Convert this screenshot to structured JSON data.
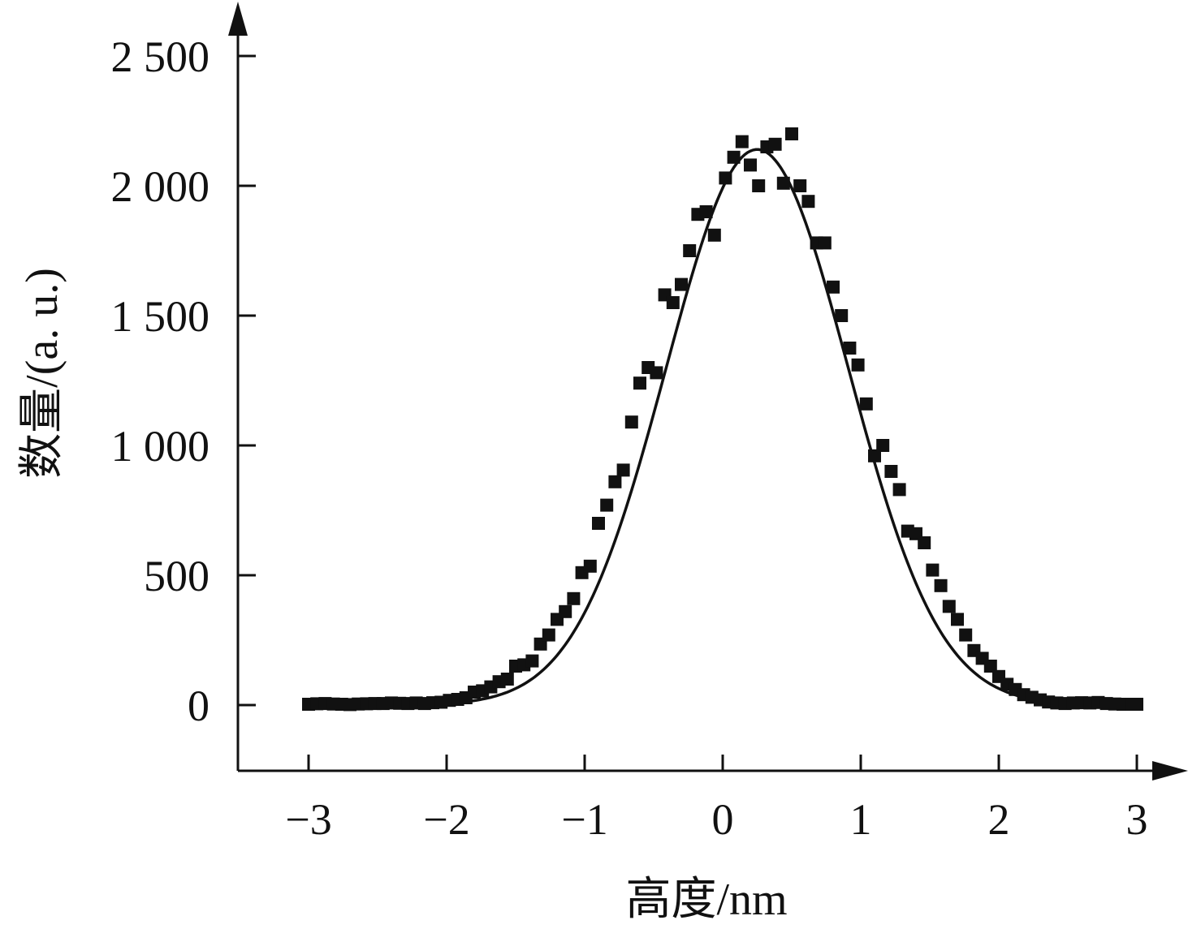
{
  "chart_data": {
    "type": "scatter",
    "xlabel": "高度/nm",
    "ylabel": "数量/(a. u.)",
    "xlim": [
      -3.5,
      3.35
    ],
    "ylim": [
      -250,
      2700
    ],
    "x_ticks": [
      -3,
      -2,
      -1,
      0,
      1,
      2,
      3
    ],
    "x_tick_labels": [
      "−3",
      "−2",
      "−1",
      "0",
      "1",
      "2",
      "3"
    ],
    "y_ticks": [
      0,
      500,
      1000,
      1500,
      2000,
      2500
    ],
    "y_tick_labels": [
      "0",
      "500",
      "1 000",
      "1 500",
      "2 000",
      "2 500"
    ],
    "grid": false,
    "legend": "none",
    "colors": {
      "ink": "#111111",
      "background": "#ffffff"
    },
    "series": [
      {
        "kind": "markers",
        "marker": "square",
        "points": [
          [
            -3.0,
            3
          ],
          [
            -2.94,
            5
          ],
          [
            -2.88,
            6
          ],
          [
            -2.82,
            4
          ],
          [
            -2.76,
            3
          ],
          [
            -2.7,
            2
          ],
          [
            -2.64,
            4
          ],
          [
            -2.58,
            5
          ],
          [
            -2.52,
            6
          ],
          [
            -2.46,
            6
          ],
          [
            -2.4,
            8
          ],
          [
            -2.34,
            7
          ],
          [
            -2.28,
            6
          ],
          [
            -2.22,
            8
          ],
          [
            -2.16,
            6
          ],
          [
            -2.1,
            9
          ],
          [
            -2.04,
            11
          ],
          [
            -1.98,
            18
          ],
          [
            -1.92,
            22
          ],
          [
            -1.86,
            28
          ],
          [
            -1.8,
            50
          ],
          [
            -1.74,
            55
          ],
          [
            -1.68,
            70
          ],
          [
            -1.62,
            90
          ],
          [
            -1.56,
            100
          ],
          [
            -1.5,
            150
          ],
          [
            -1.44,
            155
          ],
          [
            -1.38,
            170
          ],
          [
            -1.32,
            235
          ],
          [
            -1.26,
            270
          ],
          [
            -1.2,
            330
          ],
          [
            -1.14,
            360
          ],
          [
            -1.08,
            410
          ],
          [
            -1.02,
            510
          ],
          [
            -0.96,
            535
          ],
          [
            -0.9,
            700
          ],
          [
            -0.84,
            770
          ],
          [
            -0.78,
            860
          ],
          [
            -0.72,
            905
          ],
          [
            -0.66,
            1090
          ],
          [
            -0.6,
            1240
          ],
          [
            -0.54,
            1300
          ],
          [
            -0.48,
            1280
          ],
          [
            -0.42,
            1580
          ],
          [
            -0.36,
            1550
          ],
          [
            -0.3,
            1620
          ],
          [
            -0.24,
            1750
          ],
          [
            -0.18,
            1890
          ],
          [
            -0.12,
            1900
          ],
          [
            -0.06,
            1810
          ],
          [
            0.02,
            2030
          ],
          [
            0.08,
            2110
          ],
          [
            0.14,
            2170
          ],
          [
            0.2,
            2080
          ],
          [
            0.26,
            2000
          ],
          [
            0.32,
            2150
          ],
          [
            0.38,
            2160
          ],
          [
            0.44,
            2010
          ],
          [
            0.5,
            2200
          ],
          [
            0.56,
            2000
          ],
          [
            0.62,
            1940
          ],
          [
            0.68,
            1780
          ],
          [
            0.74,
            1780
          ],
          [
            0.8,
            1610
          ],
          [
            0.86,
            1500
          ],
          [
            0.92,
            1375
          ],
          [
            0.98,
            1310
          ],
          [
            1.04,
            1160
          ],
          [
            1.1,
            960
          ],
          [
            1.16,
            1000
          ],
          [
            1.22,
            900
          ],
          [
            1.28,
            830
          ],
          [
            1.34,
            670
          ],
          [
            1.4,
            660
          ],
          [
            1.46,
            625
          ],
          [
            1.52,
            520
          ],
          [
            1.58,
            460
          ],
          [
            1.64,
            380
          ],
          [
            1.7,
            330
          ],
          [
            1.76,
            270
          ],
          [
            1.82,
            210
          ],
          [
            1.88,
            180
          ],
          [
            1.94,
            150
          ],
          [
            2.0,
            110
          ],
          [
            2.06,
            80
          ],
          [
            2.12,
            60
          ],
          [
            2.18,
            40
          ],
          [
            2.24,
            30
          ],
          [
            2.3,
            20
          ],
          [
            2.36,
            12
          ],
          [
            2.42,
            8
          ],
          [
            2.48,
            6
          ],
          [
            2.54,
            8
          ],
          [
            2.6,
            9
          ],
          [
            2.66,
            8
          ],
          [
            2.72,
            10
          ],
          [
            2.78,
            6
          ],
          [
            2.84,
            4
          ],
          [
            2.9,
            3
          ],
          [
            2.96,
            3
          ],
          [
            3.0,
            3
          ]
        ]
      },
      {
        "kind": "fit-line",
        "model": "gaussian",
        "amplitude": 2140,
        "center": 0.25,
        "sigma": 0.66
      }
    ]
  }
}
